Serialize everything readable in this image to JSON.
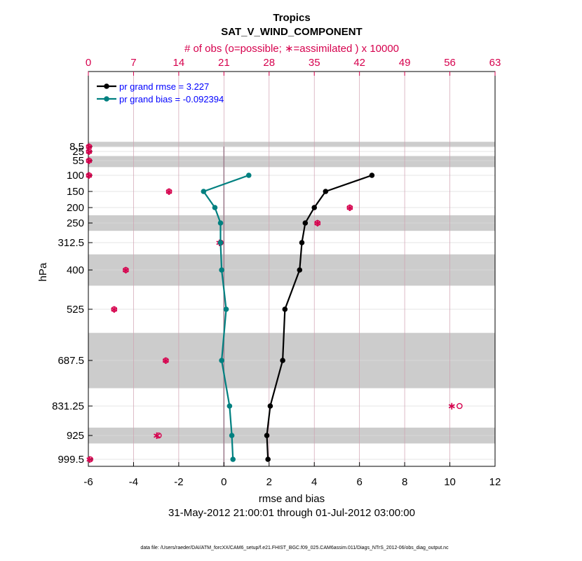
{
  "chart_data": {
    "type": "line",
    "title": "Tropics",
    "subtitle": "SAT_V_WIND_COMPONENT",
    "top_axis_label": "# of obs (o=possible; ∗=assimilated ) x 10000",
    "xlabel": "rmse and bias",
    "ylabel": "hPa",
    "date_range": "31-May-2012 21:00:01 through 01-Jul-2012 03:00:00",
    "footnote": "data file: /Users/raeder/DAI/ATM_forcXX/CAM6_setup/f.e21.FHIST_BGC.f09_025.CAM6assim.011/Diags_NTrS_2012-06/obs_diag_output.nc",
    "xlim": [
      -6,
      12
    ],
    "x_ticks": [
      "-6",
      "-4",
      "-2",
      "0",
      "2",
      "4",
      "6",
      "8",
      "10",
      "12"
    ],
    "top_xlim": [
      0,
      63
    ],
    "top_ticks": [
      "0",
      "7",
      "14",
      "21",
      "28",
      "35",
      "42",
      "49",
      "56",
      "63"
    ],
    "y_tick_labels": [
      "8.5",
      "25",
      "55",
      "100",
      "150",
      "200",
      "250",
      "312.5",
      "400",
      "525",
      "687.5",
      "831.25",
      "925",
      "999.5"
    ],
    "shaded_layers": [
      [
        0,
        10
      ],
      [
        40,
        75
      ],
      [
        225,
        275
      ],
      [
        350,
        450
      ],
      [
        600,
        775
      ],
      [
        900,
        950
      ]
    ],
    "colors": {
      "rmse": "#000000",
      "bias": "#008080",
      "obs": "#d6004d",
      "legend_text": "#0000ff",
      "grid": "#d0a0b0",
      "band": "#cccccc"
    },
    "legend": {
      "rmse_label": "pr grand rmse = 3.227",
      "bias_label": "pr grand bias = -0.092394"
    },
    "series": [
      {
        "name": "pr grand rmse = 3.227",
        "levels": [
          100,
          150,
          200,
          250,
          312.5,
          400,
          525,
          687.5,
          831.25,
          925,
          999.5
        ],
        "values": [
          6.55,
          4.5,
          4.0,
          3.6,
          3.45,
          3.35,
          2.7,
          2.6,
          2.05,
          1.9,
          1.95
        ]
      },
      {
        "name": "pr grand bias = -0.092394",
        "levels": [
          100,
          150,
          200,
          250,
          312.5,
          400,
          525,
          687.5,
          831.25,
          925,
          999.5
        ],
        "values": [
          1.1,
          -0.9,
          -0.4,
          -0.15,
          -0.15,
          -0.1,
          0.1,
          -0.1,
          0.25,
          0.35,
          0.4
        ]
      }
    ],
    "obs_counts": {
      "levels": [
        8.5,
        25,
        55,
        100,
        150,
        200,
        250,
        312.5,
        400,
        525,
        687.5,
        831.25,
        925,
        999.5
      ],
      "possible": [
        0.1,
        0.1,
        0.1,
        0.1,
        12.5,
        40.5,
        35.5,
        20.5,
        5.8,
        4.0,
        12.0,
        57.5,
        10.9,
        0.3
      ],
      "assimilated": [
        0.1,
        0.1,
        0.1,
        0.1,
        12.5,
        40.5,
        35.5,
        20.3,
        5.8,
        4.0,
        12.0,
        56.3,
        10.6,
        0.2
      ]
    }
  }
}
